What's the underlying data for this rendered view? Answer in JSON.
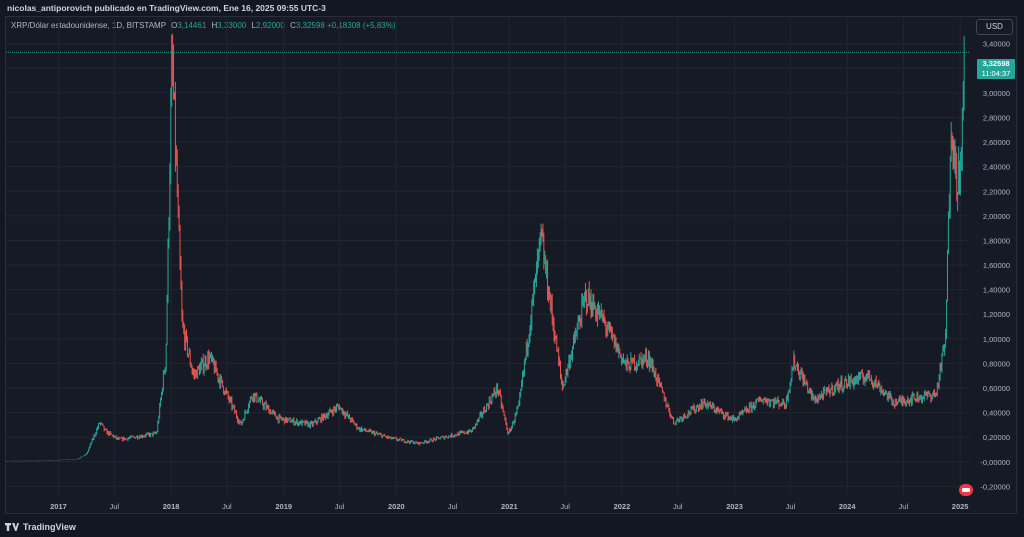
{
  "publisher": "nicolas_antiporovich publicado en TradingView.com, Ene 16, 2025 09:55 UTC-3",
  "legend": {
    "symbol": "XRP/Dólar estadounidense, 1D, BITSTAMP",
    "o_label": "O",
    "o": "3,14461",
    "h_label": "H",
    "h": "3,33000",
    "l_label": "L",
    "l": "2,92000",
    "c_label": "C",
    "c": "3,32598",
    "change": "+0,18308 (+5,83%)"
  },
  "currency_button": "USD",
  "last_price": {
    "price": "3,32598",
    "countdown": "11:04:37"
  },
  "brand": "TradingView",
  "icons": {
    "logo": "tradingview-logo-icon",
    "flag": "us-flag-icon"
  },
  "colors": {
    "up": "#26a69a",
    "down": "#ef5350",
    "background": "#161a25",
    "grid": "#232732"
  },
  "chart_data": {
    "type": "candlestick",
    "y_ticks": [
      -0.2,
      0,
      0.2,
      0.4,
      0.6,
      0.8,
      1.0,
      1.2,
      1.4,
      1.6,
      1.8,
      2.0,
      2.2,
      2.4,
      2.6,
      2.8,
      3.0,
      3.2,
      3.4
    ],
    "y_tick_labels": [
      "-0,20000",
      "-0,00000",
      "0,20000",
      "0,40000",
      "0,60000",
      "0,80000",
      "1,00000",
      "1,20000",
      "1,40000",
      "1,60000",
      "1,80000",
      "2,00000",
      "2,20000",
      "2,40000",
      "2,60000",
      "2,80000",
      "3,00000",
      "3,20000",
      "3,40000"
    ],
    "ylim": [
      -0.27,
      3.43
    ],
    "x_ticks": [
      "2017",
      "Jul",
      "2018",
      "Jul",
      "2019",
      "Jul",
      "2020",
      "Jul",
      "2021",
      "Jul",
      "2022",
      "Jul",
      "2023",
      "Jul",
      "2024",
      "Jul",
      "2025"
    ],
    "x_tick_dates": [
      "2017-01-01",
      "2017-07-01",
      "2018-01-01",
      "2018-07-01",
      "2019-01-01",
      "2019-07-01",
      "2020-01-01",
      "2020-07-01",
      "2021-01-01",
      "2021-07-01",
      "2022-01-01",
      "2022-07-01",
      "2023-01-01",
      "2023-07-01",
      "2024-01-01",
      "2024-07-01",
      "2025-01-01"
    ],
    "xlim": [
      "2016-07-15",
      "2025-02-02"
    ],
    "grid": true,
    "series": [
      {
        "x": [
          "2016-07-15",
          "2016-11-01",
          "2017-03-01",
          "2017-04-01",
          "2017-05-15",
          "2017-06-01",
          "2017-07-15",
          "2017-09-01",
          "2017-11-15",
          "2017-12-15",
          "2018-01-04",
          "2018-02-06",
          "2018-03-15",
          "2018-05-05",
          "2018-08-15",
          "2018-09-21",
          "2018-12-15",
          "2019-04-01",
          "2019-06-28",
          "2019-09-01",
          "2019-12-15",
          "2020-03-13",
          "2020-06-01",
          "2020-09-01",
          "2020-11-24",
          "2020-12-29",
          "2021-02-01",
          "2021-04-14",
          "2021-06-22",
          "2021-09-06",
          "2021-11-01",
          "2022-01-15",
          "2022-03-28",
          "2022-06-18",
          "2022-09-23",
          "2022-12-31",
          "2023-03-29",
          "2023-06-15",
          "2023-07-13",
          "2023-09-15",
          "2023-12-01",
          "2024-03-11",
          "2024-06-01",
          "2024-08-05",
          "2024-10-15",
          "2024-11-15",
          "2024-12-03",
          "2024-12-19",
          "2025-01-05",
          "2025-01-15"
        ],
        "close": [
          0.006,
          0.007,
          0.02,
          0.06,
          0.32,
          0.25,
          0.18,
          0.2,
          0.23,
          0.85,
          3.3,
          1.1,
          0.7,
          0.85,
          0.3,
          0.55,
          0.35,
          0.3,
          0.45,
          0.27,
          0.19,
          0.15,
          0.2,
          0.25,
          0.6,
          0.22,
          0.45,
          1.82,
          0.6,
          1.35,
          1.15,
          0.78,
          0.85,
          0.32,
          0.48,
          0.34,
          0.51,
          0.47,
          0.82,
          0.5,
          0.62,
          0.7,
          0.48,
          0.52,
          0.55,
          1.0,
          2.85,
          2.3,
          2.4,
          3.33
        ],
        "name": ""
      }
    ]
  }
}
